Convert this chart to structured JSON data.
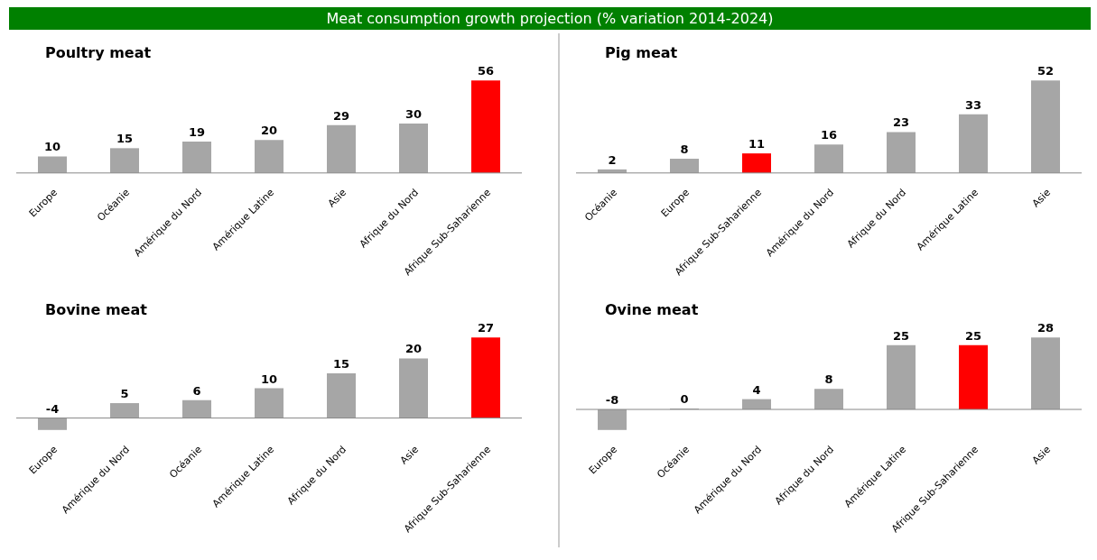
{
  "chart_data": [
    {
      "type": "bar",
      "title": "Poultry meat",
      "annotations": [
        "Meat consumption growth projection (% variation 2014-2024)"
      ],
      "categories": [
        "Europe",
        "Océanie",
        "Amérique du Nord",
        "Amérique Latine",
        "Asie",
        "Afrique du Nord",
        "Afrique Sub-Saharienne"
      ],
      "values": [
        10,
        15,
        19,
        20,
        29,
        30,
        56
      ],
      "colors": [
        "#a6a6a6",
        "#a6a6a6",
        "#a6a6a6",
        "#a6a6a6",
        "#a6a6a6",
        "#a6a6a6",
        "#ff0000"
      ],
      "data_labels": true
    },
    {
      "type": "bar",
      "title": "Pig meat",
      "categories": [
        "Océanie",
        "Europe",
        "Afrique Sub-Saharienne",
        "Amérique du Nord",
        "Afrique du Nord",
        "Amérique Latine",
        "Asie"
      ],
      "values": [
        2,
        8,
        11,
        16,
        23,
        33,
        52
      ],
      "colors": [
        "#a6a6a6",
        "#a6a6a6",
        "#ff0000",
        "#a6a6a6",
        "#a6a6a6",
        "#a6a6a6",
        "#a6a6a6"
      ],
      "data_labels": true
    },
    {
      "type": "bar",
      "title": "Bovine meat",
      "categories": [
        "Europe",
        "Amérique du Nord",
        "Océanie",
        "Amérique Latine",
        "Afrique du Nord",
        "Asie",
        "Afrique Sub-Saharienne"
      ],
      "values": [
        -4,
        5,
        6,
        10,
        15,
        20,
        27
      ],
      "colors": [
        "#a6a6a6",
        "#a6a6a6",
        "#a6a6a6",
        "#a6a6a6",
        "#a6a6a6",
        "#a6a6a6",
        "#ff0000"
      ],
      "data_labels": true
    },
    {
      "type": "bar",
      "title": "Ovine meat",
      "categories": [
        "Europe",
        "Océanie",
        "Amérique du Nord",
        "Afrique du Nord",
        "Amérique Latine",
        "Afrique Sub-Saharienne",
        "Asie"
      ],
      "values": [
        -8,
        0,
        4,
        8,
        25,
        25,
        28
      ],
      "colors": [
        "#a6a6a6",
        "#a6a6a6",
        "#a6a6a6",
        "#a6a6a6",
        "#a6a6a6",
        "#ff0000",
        "#a6a6a6"
      ],
      "data_labels": true
    }
  ]
}
